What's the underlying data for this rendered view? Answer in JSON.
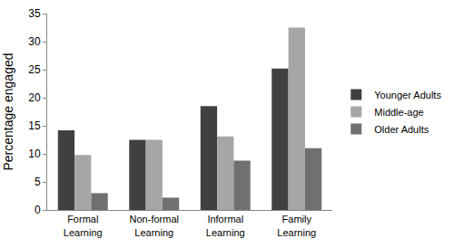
{
  "chart_data": {
    "type": "bar",
    "y_label": "Percentage engaged",
    "categories": [
      "Formal Learning",
      "Non-formal Learning",
      "Informal Learning",
      "Family Learning"
    ],
    "series": [
      {
        "name": "Younger Adults",
        "color": "#404040",
        "values": [
          14.2,
          12.5,
          18.5,
          25.2
        ]
      },
      {
        "name": "Middle-age",
        "color": "#a6a6a6",
        "values": [
          9.8,
          12.5,
          13.1,
          32.5
        ]
      },
      {
        "name": "Older Adults",
        "color": "#707070",
        "values": [
          3.0,
          2.2,
          8.8,
          11.0
        ]
      }
    ],
    "ylim": [
      0,
      35
    ],
    "yticks": [
      0,
      5,
      10,
      15,
      20,
      25,
      30,
      35
    ],
    "grid": false,
    "legend": "right"
  }
}
